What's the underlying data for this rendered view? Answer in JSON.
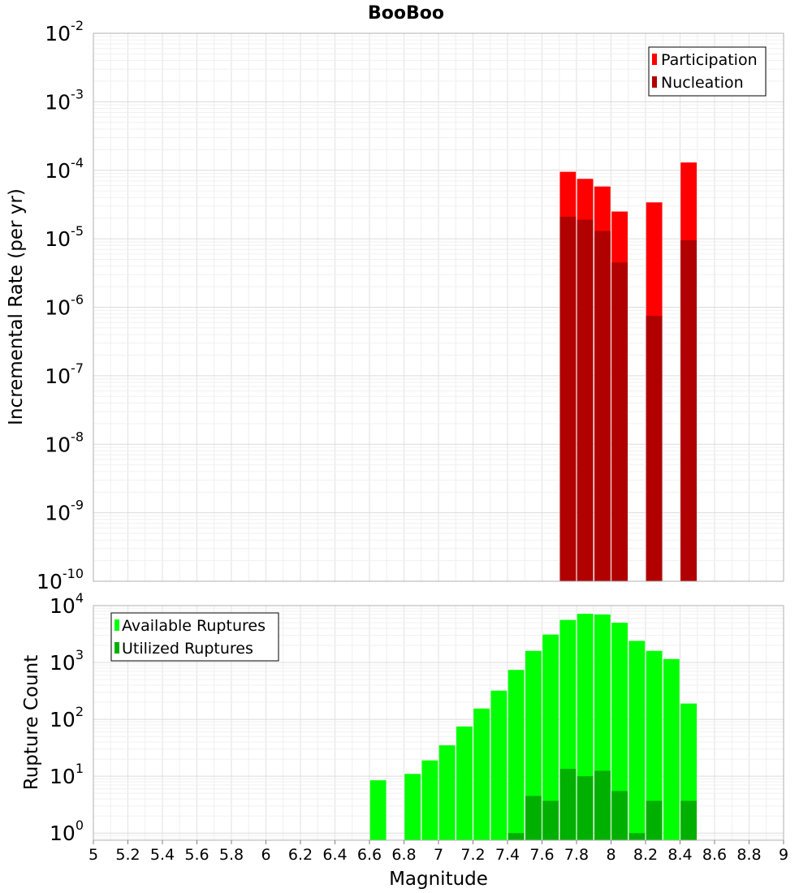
{
  "chart_data": [
    {
      "id": "rate",
      "type": "bar",
      "title": "BooBoo",
      "xlabel": "",
      "ylabel": "Incremental Rate (per yr)",
      "y_scale": "log",
      "ylim": [
        1e-10,
        0.01
      ],
      "xlim": [
        5,
        9
      ],
      "y_ticks": [
        {
          "base": "10",
          "exp": "-10"
        },
        {
          "base": "10",
          "exp": "-9"
        },
        {
          "base": "10",
          "exp": "-8"
        },
        {
          "base": "10",
          "exp": "-7"
        },
        {
          "base": "10",
          "exp": "-6"
        },
        {
          "base": "10",
          "exp": "-5"
        },
        {
          "base": "10",
          "exp": "-4"
        },
        {
          "base": "10",
          "exp": "-3"
        },
        {
          "base": "10",
          "exp": "-2"
        }
      ],
      "grid": true,
      "legend_position": "top-right",
      "x": [
        7.75,
        7.85,
        7.95,
        8.05,
        8.25,
        8.45
      ],
      "series": [
        {
          "name": "Participation",
          "color": "#ff0000",
          "values": [
            9.5e-05,
            7.5e-05,
            5.8e-05,
            2.5e-05,
            3.4e-05,
            0.00013
          ]
        },
        {
          "name": "Nucleation",
          "color": "#b00000",
          "values": [
            2.1e-05,
            1.9e-05,
            1.3e-05,
            4.5e-06,
            7.5e-07,
            9.5e-06
          ]
        }
      ]
    },
    {
      "id": "count",
      "type": "bar",
      "title": "",
      "xlabel": "Magnitude",
      "ylabel": "Rupture Count",
      "y_scale": "log",
      "ylim": [
        0.75,
        10000
      ],
      "xlim": [
        5,
        9
      ],
      "y_ticks": [
        {
          "base": "10",
          "exp": "0",
          "value": 1
        },
        {
          "base": "10",
          "exp": "1",
          "value": 10
        },
        {
          "base": "10",
          "exp": "2",
          "value": 100
        },
        {
          "base": "10",
          "exp": "3",
          "value": 1000
        },
        {
          "base": "10",
          "exp": "4",
          "value": 10000
        }
      ],
      "x_ticks": [
        "5",
        "5.2",
        "5.4",
        "5.6",
        "5.8",
        "6",
        "6.2",
        "6.4",
        "6.6",
        "6.8",
        "7",
        "7.2",
        "7.4",
        "7.6",
        "7.8",
        "8",
        "8.2",
        "8.4",
        "8.6",
        "8.8",
        "9"
      ],
      "grid": true,
      "legend_position": "top-left",
      "series": [
        {
          "name": "Available Ruptures",
          "color": "#00ff00",
          "x": [
            6.65,
            6.85,
            6.95,
            7.05,
            7.15,
            7.25,
            7.35,
            7.45,
            7.55,
            7.65,
            7.75,
            7.85,
            7.95,
            8.05,
            8.15,
            8.25,
            8.35,
            8.45
          ],
          "values": [
            8.5,
            11,
            19,
            35,
            75,
            155,
            320,
            740,
            1600,
            3100,
            5600,
            7200,
            7000,
            5000,
            2400,
            1600,
            1150,
            190
          ]
        },
        {
          "name": "Utilized Ruptures",
          "color": "#00b000",
          "x": [
            7.45,
            7.55,
            7.65,
            7.75,
            7.85,
            7.95,
            8.05,
            8.15,
            8.25,
            8.45
          ],
          "values": [
            1,
            4.5,
            3.7,
            13.5,
            10,
            12.5,
            5.5,
            1,
            3.7,
            3.7
          ]
        }
      ]
    }
  ]
}
